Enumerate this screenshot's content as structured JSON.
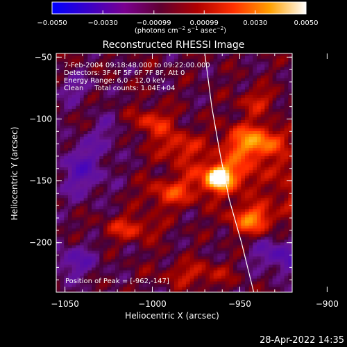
{
  "chart_data": {
    "type": "heatmap",
    "title": "Reconstructed RHESSI Image",
    "xlabel": "Heliocentric X (arcsec)",
    "ylabel": "Heliocentric Y (arcsec)",
    "xlim": [
      -1055,
      -920
    ],
    "ylim": [
      -240,
      -47
    ],
    "x_ticks": [
      -1050,
      -1000,
      -950,
      -900
    ],
    "x_tick_labels": [
      "−1050",
      "−1000",
      "−950",
      "−900"
    ],
    "y_ticks": [
      -50,
      -100,
      -150,
      -200
    ],
    "y_tick_labels": [
      "−50",
      "−100",
      "−150",
      "−200"
    ],
    "colorbar": {
      "min": -0.005,
      "max": 0.005,
      "ticks": [
        -0.005,
        -0.003,
        -0.00099,
        0.00099,
        0.003,
        0.005
      ],
      "tick_labels": [
        "−0.0050",
        "−0.0030",
        "−0.00099",
        "0.00099",
        "0.0030",
        "0.0050"
      ],
      "unit_label_parts": [
        "(photons cm",
        "−2",
        " s",
        "−1",
        " asec",
        "−2",
        ")"
      ],
      "gradient_colors": [
        "#0000ff",
        "#3a00c8",
        "#7a0090",
        "#600030",
        "#b00000",
        "#ff3000",
        "#ffa000",
        "#ffffff"
      ]
    },
    "info_lines": [
      "7-Feb-2004 09:18:48.000 to 09:22:00.000",
      "Detectors: 3F 4F 5F 6F 7F 8F, Att 0",
      "Energy Range: 6.0 - 12.0 keV",
      "Clean     Total counts: 1.04E+04"
    ],
    "peak_label": "Position of Peak = [-962,-147]",
    "peak": {
      "x": -962,
      "y": -147
    },
    "limb_points": [
      [
        -970,
        -47
      ],
      [
        -966,
        -90
      ],
      [
        -961,
        -130
      ],
      [
        -956,
        -165
      ],
      [
        -949,
        -200
      ],
      [
        -942,
        -240
      ]
    ],
    "blobs": [
      {
        "x": -962,
        "y": -147,
        "sx": 4,
        "sy": 5,
        "a": 0.0058
      },
      {
        "x": -960,
        "y": -147,
        "sx": 14,
        "sy": 11,
        "a": 0.0022
      },
      {
        "x": -947,
        "y": -120,
        "sx": 10,
        "sy": 12,
        "a": 0.0021
      },
      {
        "x": -943,
        "y": -181,
        "sx": 9,
        "sy": 8,
        "a": 0.0027
      },
      {
        "x": -985,
        "y": -122,
        "sx": 9,
        "sy": 9,
        "a": 0.0016
      },
      {
        "x": -1000,
        "y": -102,
        "sx": 8,
        "sy": 8,
        "a": 0.0016
      },
      {
        "x": -990,
        "y": -160,
        "sx": 10,
        "sy": 8,
        "a": 0.0017
      },
      {
        "x": -1012,
        "y": -188,
        "sx": 11,
        "sy": 7,
        "a": 0.0015
      },
      {
        "x": -935,
        "y": -118,
        "sx": 9,
        "sy": 8,
        "a": 0.0018
      },
      {
        "x": -940,
        "y": -85,
        "sx": 8,
        "sy": 7,
        "a": 0.0012
      },
      {
        "x": -915,
        "y": -163,
        "sx": 10,
        "sy": 9,
        "a": 0.0016
      },
      {
        "x": -920,
        "y": -140,
        "sx": 7,
        "sy": 7,
        "a": 0.0011
      },
      {
        "x": -1040,
        "y": -140,
        "sx": 10,
        "sy": 16,
        "a": -0.0015
      },
      {
        "x": -925,
        "y": -210,
        "sx": 12,
        "sy": 10,
        "a": -0.0016
      },
      {
        "x": -1045,
        "y": -215,
        "sx": 10,
        "sy": 10,
        "a": -0.0013
      },
      {
        "x": -1045,
        "y": -75,
        "sx": 8,
        "sy": 8,
        "a": -0.0009
      },
      {
        "x": -975,
        "y": -225,
        "sx": 14,
        "sy": 7,
        "a": 0.0012
      },
      {
        "x": -1025,
        "y": -110,
        "sx": 6,
        "sy": 10,
        "a": -0.0008
      }
    ]
  },
  "footer": {
    "timestamp": "28-Apr-2022 14:35"
  }
}
